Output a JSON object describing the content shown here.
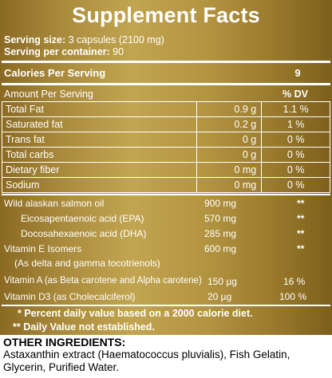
{
  "title": "Supplement Facts",
  "serving_size_label": "Serving size:",
  "serving_size_value": "3 capsules (2100 mg)",
  "servings_label": "Serving per container:",
  "servings_value": "90",
  "calories_label": "Calories Per Serving",
  "calories_value": "9",
  "amount_header": "Amount Per Serving",
  "dv_header": "% DV",
  "nutrients": [
    {
      "name": "Total Fat",
      "amount": "0.9 g",
      "dv": "1.1 %"
    },
    {
      "name": "Saturated fat",
      "amount": "0.2 g",
      "dv": "1 %"
    },
    {
      "name": "Trans fat",
      "amount": "0 g",
      "dv": "0 %"
    },
    {
      "name": "Total carbs",
      "amount": "0 g",
      "dv": "0 %"
    },
    {
      "name": "Dietary fiber",
      "amount": "0 mg",
      "dv": "0 %"
    },
    {
      "name": "Sodium",
      "amount": "0 mg",
      "dv": "0 %"
    }
  ],
  "ingredients": [
    {
      "name": "Wild alaskan salmon oil",
      "amount": "900 mg",
      "dv": "**"
    },
    {
      "name": "Eicosapentaenoic acid (EPA)",
      "amount": "570 mg",
      "dv": "**"
    },
    {
      "name": "Docosahexaenoic acid (DHA)",
      "amount": "285 mg",
      "dv": "**"
    },
    {
      "name": "Vitamin E Isomers",
      "amount": "600 mg",
      "dv": "**"
    },
    {
      "name": "(As delta and gamma tocotrienols)",
      "amount": "",
      "dv": ""
    },
    {
      "name": "Vitamin A (as Beta carotene and Alpha carotene)",
      "amount": "150 µg",
      "dv": "16 %"
    },
    {
      "name": "Vitamin D3 (as Cholecalciferol)",
      "amount": "20 µg",
      "dv": "100 %"
    }
  ],
  "footnote_1": "* Percent daily value based on a 2000 calorie diet.",
  "footnote_2": "** Daily Value not established.",
  "other_heading": "OTHER INGREDIENTS:",
  "other_text": "Astaxanthin extract (Haematococcus pluvialis), Fish Gelatin, Glycerin, Purified Water."
}
